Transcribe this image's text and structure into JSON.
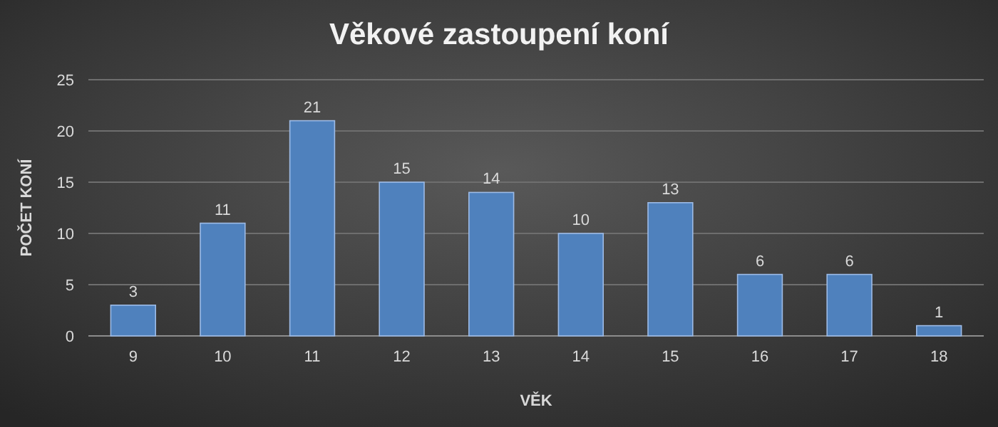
{
  "chart_data": {
    "type": "bar",
    "title": "Věkové zastoupení koní",
    "xlabel": "VĚK",
    "ylabel": "POČET KONÍ",
    "categories": [
      "9",
      "10",
      "11",
      "12",
      "13",
      "14",
      "15",
      "16",
      "17",
      "18"
    ],
    "values": [
      3,
      11,
      21,
      15,
      14,
      10,
      13,
      6,
      6,
      1
    ],
    "color": "#4f81bd",
    "ylim": [
      0,
      25
    ],
    "yticks": [
      0,
      5,
      10,
      15,
      20,
      25
    ],
    "grid": "y",
    "data_labels": true
  }
}
